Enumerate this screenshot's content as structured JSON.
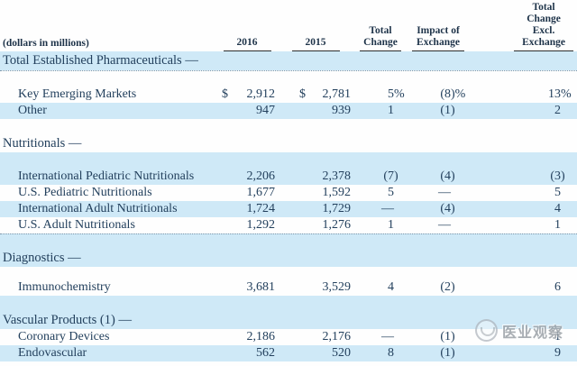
{
  "meta": {
    "watermark_text": "医业观察"
  },
  "colors": {
    "stripe": "#cfe9f7",
    "text": "#23405d",
    "rule": "#2e2e2e"
  },
  "table": {
    "units_label": "(dollars in millions)",
    "columns": [
      {
        "slug": "label",
        "lines": []
      },
      {
        "slug": "2016",
        "lines": [
          "2016"
        ]
      },
      {
        "slug": "2015",
        "lines": [
          "2015"
        ]
      },
      {
        "slug": "total-change",
        "lines": [
          "Total",
          "Change"
        ]
      },
      {
        "slug": "impact-of-exchange",
        "lines": [
          "Impact of",
          "Exchange"
        ]
      },
      {
        "slug": "total-change-excl-exchange",
        "lines": [
          "Total",
          "Change",
          "Excl.",
          "Exchange"
        ]
      }
    ],
    "rows": [
      {
        "kind": "head",
        "shaded": true,
        "sep": [
          "first"
        ],
        "label": "Total Established Pharmaceuticals —"
      },
      {
        "kind": "spacer",
        "shaded": false,
        "sep": [
          "dotted-top"
        ]
      },
      {
        "kind": "data",
        "shaded": false,
        "label": "Key Emerging Markets",
        "cells": [
          {
            "p": "$",
            "v": "2,912"
          },
          {
            "p": "$",
            "v": "2,781"
          },
          {
            "v": "5",
            "s": "%"
          },
          {
            "v": "(8",
            "s": ")%"
          },
          {
            "v": "13",
            "s": "%"
          }
        ]
      },
      {
        "kind": "data",
        "shaded": true,
        "label": "Other",
        "cells": [
          {
            "v": "947"
          },
          {
            "v": "939"
          },
          {
            "v": "1"
          },
          {
            "v": "(1",
            "s": ")"
          },
          {
            "v": "2"
          }
        ]
      },
      {
        "kind": "spacer",
        "shaded": false
      },
      {
        "kind": "head",
        "shaded": false,
        "label": "Nutritionals —"
      },
      {
        "kind": "spacer",
        "shaded": true
      },
      {
        "kind": "data",
        "shaded": true,
        "label": "International Pediatric Nutritionals",
        "cells": [
          {
            "v": "2,206"
          },
          {
            "v": "2,378"
          },
          {
            "v": "(7",
            "s": ")"
          },
          {
            "v": "(4",
            "s": ")"
          },
          {
            "v": "(3",
            "s": ")"
          }
        ]
      },
      {
        "kind": "data",
        "shaded": false,
        "label": "U.S. Pediatric Nutritionals",
        "cells": [
          {
            "v": "1,677"
          },
          {
            "v": "1,592"
          },
          {
            "v": "5"
          },
          {
            "v": "—"
          },
          {
            "v": "5"
          }
        ]
      },
      {
        "kind": "data",
        "shaded": true,
        "label": "International Adult Nutritionals",
        "cells": [
          {
            "v": "1,724"
          },
          {
            "v": "1,729"
          },
          {
            "v": "—"
          },
          {
            "v": "(4",
            "s": ")"
          },
          {
            "v": "4"
          }
        ]
      },
      {
        "kind": "data",
        "shaded": false,
        "label": "U.S. Adult Nutritionals",
        "cells": [
          {
            "v": "1,292"
          },
          {
            "v": "1,276"
          },
          {
            "v": "1"
          },
          {
            "v": "—"
          },
          {
            "v": "1"
          }
        ]
      },
      {
        "kind": "spacer",
        "shaded": true,
        "sep": [
          "dotted-top"
        ]
      },
      {
        "kind": "head",
        "shaded": true,
        "label": "Diagnostics —"
      },
      {
        "kind": "spacer",
        "shaded": false,
        "sep": [
          "short"
        ]
      },
      {
        "kind": "data",
        "shaded": false,
        "label": "Immunochemistry",
        "cells": [
          {
            "v": "3,681"
          },
          {
            "v": "3,529"
          },
          {
            "v": "4"
          },
          {
            "v": "(2",
            "s": ")"
          },
          {
            "v": "6"
          }
        ]
      },
      {
        "kind": "spacer",
        "shaded": true
      },
      {
        "kind": "head",
        "shaded": true,
        "label": "Vascular Products (1) —"
      },
      {
        "kind": "data",
        "shaded": false,
        "label": "Coronary Devices",
        "cells": [
          {
            "v": "2,186"
          },
          {
            "v": "2,176"
          },
          {
            "v": "—"
          },
          {
            "v": "(1",
            "s": ")"
          },
          {
            "v": "1"
          }
        ]
      },
      {
        "kind": "data",
        "shaded": true,
        "label": "Endovascular",
        "cells": [
          {
            "v": "562"
          },
          {
            "v": "520"
          },
          {
            "v": "8"
          },
          {
            "v": "(1",
            "s": ")"
          },
          {
            "v": "9"
          }
        ]
      }
    ]
  }
}
